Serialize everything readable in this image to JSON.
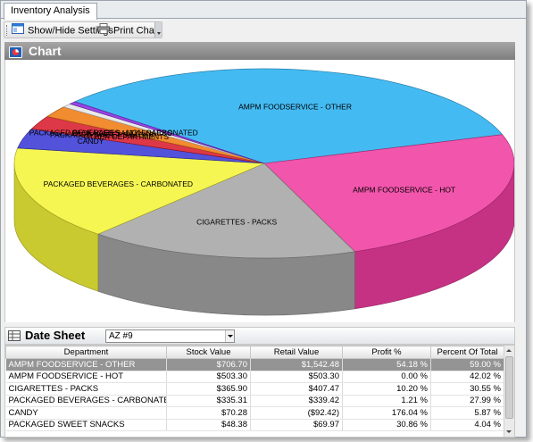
{
  "tab": {
    "label": "Inventory Analysis"
  },
  "toolbar": {
    "settings_label": "Show/Hide Settings",
    "print_label": "Print Chart"
  },
  "chart_panel": {
    "title": "Chart"
  },
  "chart_data": {
    "type": "pie",
    "title": "",
    "slices": [
      {
        "label": "AMPM FOODSERVICE - OTHER",
        "value": 706.7,
        "color": "#2ab0f0"
      },
      {
        "label": "AMPM FOODSERVICE - HOT",
        "value": 503.3,
        "color": "#f03da0"
      },
      {
        "label": "CIGARETTES - PACKS",
        "value": 365.9,
        "color": "#a6a6a6"
      },
      {
        "label": "PACKAGED BEVERAGES - CARBONATED",
        "value": 335.31,
        "color": "#f5f53a"
      },
      {
        "label": "CANDY",
        "value": 70.28,
        "color": "#3a3ad6"
      },
      {
        "label": "PACKAGED SWEET SNACKS",
        "value": 48.38,
        "color": "#d81c2e"
      },
      {
        "label": "PACKAGED BEVERAGES - NON-CARBONATED",
        "value": 40.0,
        "color": "#f07c14"
      },
      {
        "label": "PACKAGED SALTY SNACKS",
        "value": 14.0,
        "color": "#e6e6e6"
      },
      {
        "label": "OTHER DEPARTMENTS",
        "value": 10.0,
        "color": "#8a2be2"
      }
    ],
    "legend": "none"
  },
  "datasheet": {
    "title": "Date Sheet",
    "store_select": "AZ #9",
    "columns": [
      "Department",
      "Stock Value",
      "Retail Value",
      "Profit %",
      "Percent Of Total"
    ],
    "rows": [
      [
        "AMPM FOODSERVICE - OTHER",
        "$706.70",
        "$1,542.48",
        "54.18 %",
        "59.00 %"
      ],
      [
        "AMPM FOODSERVICE - HOT",
        "$503.30",
        "$503.30",
        "0.00 %",
        "42.02 %"
      ],
      [
        "CIGARETTES - PACKS",
        "$365.90",
        "$407.47",
        "10.20 %",
        "30.55 %"
      ],
      [
        "PACKAGED BEVERAGES - CARBONATED",
        "$335.31",
        "$339.42",
        "1.21 %",
        "27.99 %"
      ],
      [
        "CANDY",
        "$70.28",
        "($92.42)",
        "176.04 %",
        "5.87 %"
      ],
      [
        "PACKAGED SWEET SNACKS",
        "$48.38",
        "$69.97",
        "30.86 %",
        "4.04 %"
      ]
    ]
  }
}
